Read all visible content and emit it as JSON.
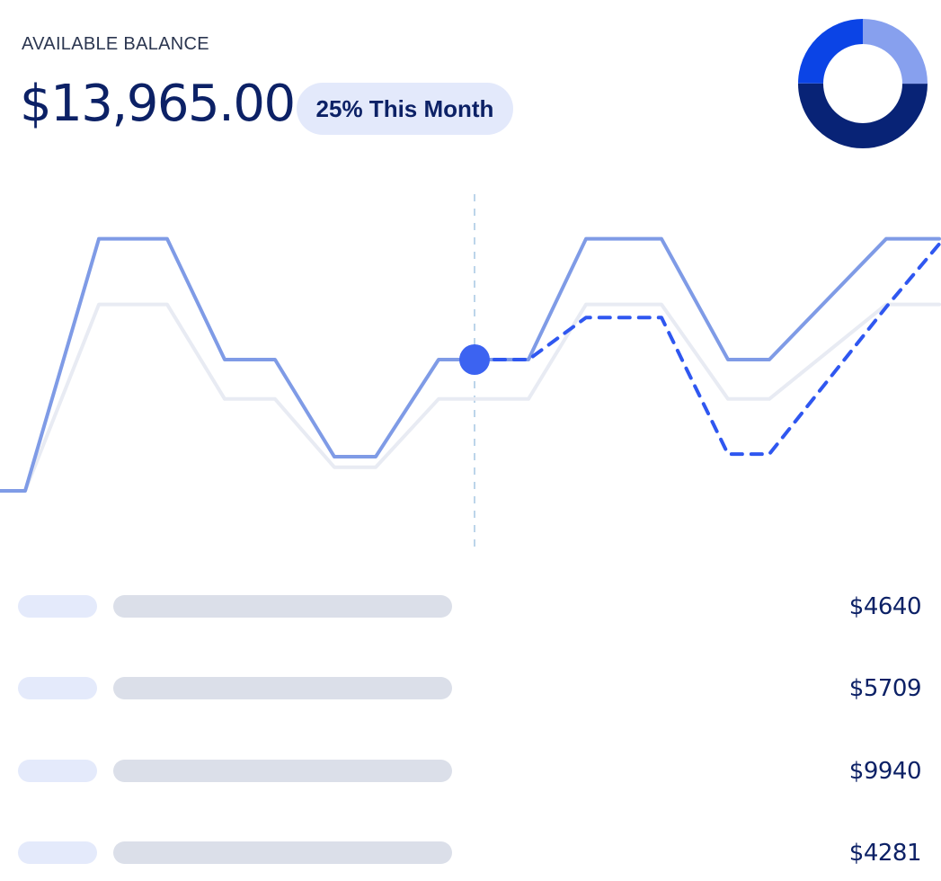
{
  "balance": {
    "label": "AVAILABLE BALANCE",
    "amount": "$13,965.00",
    "badge": "25% This Month"
  },
  "donut": {
    "segments": [
      {
        "share": 0.25,
        "color": "#87a0ee"
      },
      {
        "share": 0.5,
        "color": "#082376"
      },
      {
        "share": 0.25,
        "color": "#0b44e6"
      }
    ]
  },
  "chart_data": {
    "type": "line",
    "title": "",
    "xlabel": "",
    "ylabel": "",
    "grid": false,
    "series": [
      {
        "style": "solid",
        "color": "#7f9be6",
        "values": [
          0,
          0,
          0.96,
          0.96,
          0.5,
          0.5,
          0.13,
          0.13,
          0.5,
          0.5,
          0.5,
          0.96,
          0.96,
          0.5,
          0.5,
          0.96,
          0.96
        ]
      },
      {
        "style": "solid",
        "color": "#e8ebf3",
        "values": [
          0,
          0,
          0.71,
          0.71,
          0.35,
          0.35,
          0.09,
          0.09,
          0.35,
          0.35,
          0.35,
          0.71,
          0.71,
          0.35,
          0.35,
          0.71,
          0.71
        ]
      },
      {
        "style": "dashed",
        "color": "#2f57f0",
        "values": [
          null,
          null,
          null,
          null,
          null,
          null,
          null,
          null,
          null,
          0.5,
          0.5,
          0.66,
          0.66,
          0.14,
          0.14,
          0.7,
          0.94
        ]
      }
    ],
    "highlight_index": 9,
    "marker_color": "#3c63f1",
    "crosshair_color": "#bcd5ea"
  },
  "transactions": [
    {
      "amount": "$4640"
    },
    {
      "amount": "$5709"
    },
    {
      "amount": "$9940"
    },
    {
      "amount": "$4281"
    }
  ]
}
